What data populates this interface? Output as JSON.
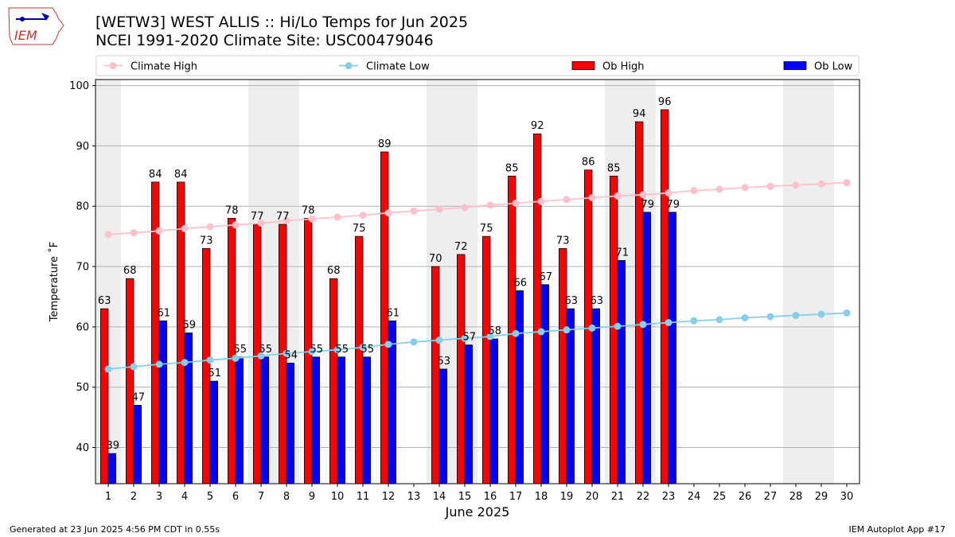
{
  "header": {
    "title_line1": "[WETW3] WEST ALLIS :: Hi/Lo Temps for Jun 2025",
    "title_line2": "NCEI 1991-2020 Climate Site: USC00479046",
    "logo_text": "IEM"
  },
  "footer": {
    "left": "Generated at 23 Jun 2025 4:56 PM CDT in 0.55s",
    "right": "IEM Autoplot App #17"
  },
  "colors": {
    "ob_high": "#ff0000",
    "ob_low": "#0000ff",
    "climate_high": "#ffc0cb",
    "climate_low": "#87ceeb",
    "weekend_band": "#eeeeee",
    "grid": "#b0b0b0"
  },
  "chart_data": {
    "type": "bar",
    "xlabel": "June 2025",
    "ylabel": "Temperature ˚F",
    "ylim": [
      34,
      101
    ],
    "yticks": [
      40,
      50,
      60,
      70,
      80,
      90,
      100
    ],
    "grid": "horizontal",
    "legend_position": "top",
    "days": [
      1,
      2,
      3,
      4,
      5,
      6,
      7,
      8,
      9,
      10,
      11,
      12,
      13,
      14,
      15,
      16,
      17,
      18,
      19,
      20,
      21,
      22,
      23,
      24,
      25,
      26,
      27,
      28,
      29,
      30
    ],
    "weekend_bands": [
      [
        1,
        1
      ],
      [
        7,
        8
      ],
      [
        14,
        15
      ],
      [
        21,
        22
      ],
      [
        28,
        29
      ]
    ],
    "series": [
      {
        "name": "Climate High",
        "kind": "line",
        "values": [
          75.3,
          75.6,
          75.9,
          76.3,
          76.6,
          76.9,
          77.2,
          77.6,
          77.9,
          78.2,
          78.5,
          78.9,
          79.2,
          79.5,
          79.8,
          80.2,
          80.5,
          80.8,
          81.1,
          81.4,
          81.7,
          81.9,
          82.2,
          82.6,
          82.8,
          83.1,
          83.3,
          83.5,
          83.7,
          83.9
        ]
      },
      {
        "name": "Climate Low",
        "kind": "line",
        "values": [
          53.0,
          53.4,
          53.8,
          54.1,
          54.5,
          54.8,
          55.2,
          55.6,
          55.9,
          56.2,
          56.6,
          57.1,
          57.5,
          57.8,
          58.1,
          58.4,
          58.9,
          59.2,
          59.5,
          59.8,
          60.1,
          60.4,
          60.7,
          61.0,
          61.2,
          61.5,
          61.7,
          61.9,
          62.1,
          62.3
        ]
      },
      {
        "name": "Ob High",
        "kind": "bar",
        "values": [
          63,
          68,
          84,
          84,
          73,
          78,
          77,
          77,
          78,
          68,
          75,
          89,
          null,
          70,
          72,
          75,
          85,
          92,
          73,
          86,
          85,
          94,
          96,
          null,
          null,
          null,
          null,
          null,
          null,
          null
        ]
      },
      {
        "name": "Ob Low",
        "kind": "bar",
        "values": [
          39,
          47,
          61,
          59,
          51,
          55,
          55,
          54,
          55,
          55,
          55,
          61,
          null,
          53,
          57,
          58,
          66,
          67,
          63,
          63,
          71,
          79,
          79,
          null,
          null,
          null,
          null,
          null,
          null,
          null
        ]
      }
    ]
  }
}
